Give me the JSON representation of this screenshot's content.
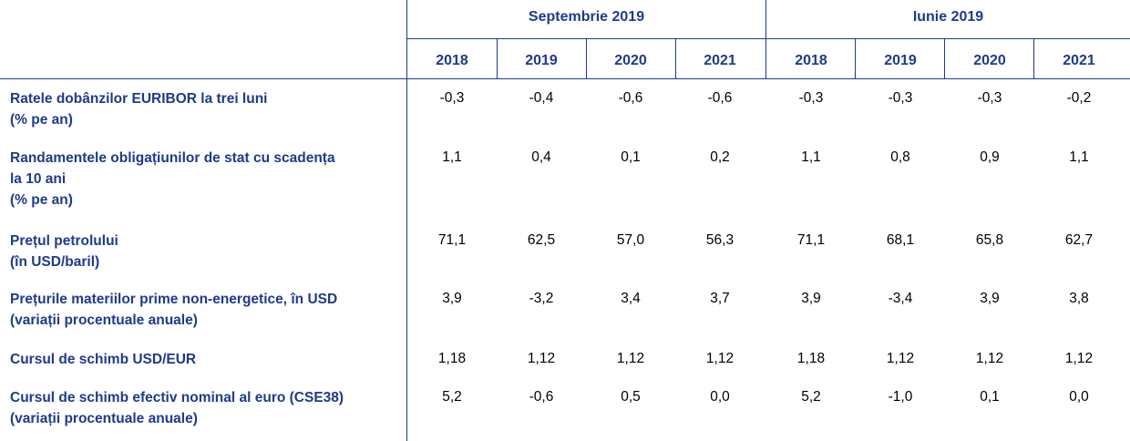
{
  "header": {
    "groups": [
      {
        "label": "Septembrie 2019",
        "years": [
          "2018",
          "2019",
          "2020",
          "2021"
        ]
      },
      {
        "label": "Iunie 2019",
        "years": [
          "2018",
          "2019",
          "2020",
          "2021"
        ]
      }
    ]
  },
  "rows": [
    {
      "label_lines": [
        "Ratele dobânzilor EURIBOR la trei luni",
        "(% pe an)"
      ],
      "values": [
        "-0,3",
        "-0,4",
        "-0,6",
        "-0,6",
        "-0,3",
        "-0,3",
        "-0,3",
        "-0,2"
      ]
    },
    {
      "label_lines": [
        "Randamentele obligațiunilor de stat cu scadența",
        "la 10 ani",
        "(% pe an)"
      ],
      "values": [
        "1,1",
        "0,4",
        "0,1",
        "0,2",
        "1,1",
        "0,8",
        "0,9",
        "1,1"
      ]
    },
    {
      "label_lines": [
        "Prețul petrolului",
        "(în USD/baril)"
      ],
      "values": [
        "71,1",
        "62,5",
        "57,0",
        "56,3",
        "71,1",
        "68,1",
        "65,8",
        "62,7"
      ]
    },
    {
      "label_lines": [
        "Prețurile materiilor prime non-energetice, în USD",
        "(variații procentuale anuale)"
      ],
      "values": [
        "3,9",
        "-3,2",
        "3,4",
        "3,7",
        "3,9",
        "-3,4",
        "3,9",
        "3,8"
      ]
    },
    {
      "label_lines": [
        "Cursul de schimb USD/EUR"
      ],
      "values": [
        "1,18",
        "1,12",
        "1,12",
        "1,12",
        "1,18",
        "1,12",
        "1,12",
        "1,12"
      ]
    },
    {
      "label_lines": [
        "Cursul de schimb efectiv nominal al euro (CSE38)",
        "(variații procentuale anuale)"
      ],
      "values": [
        "5,2",
        "-0,6",
        "0,5",
        "0,0",
        "5,2",
        "-1,0",
        "0,1",
        "0,0"
      ]
    }
  ]
}
